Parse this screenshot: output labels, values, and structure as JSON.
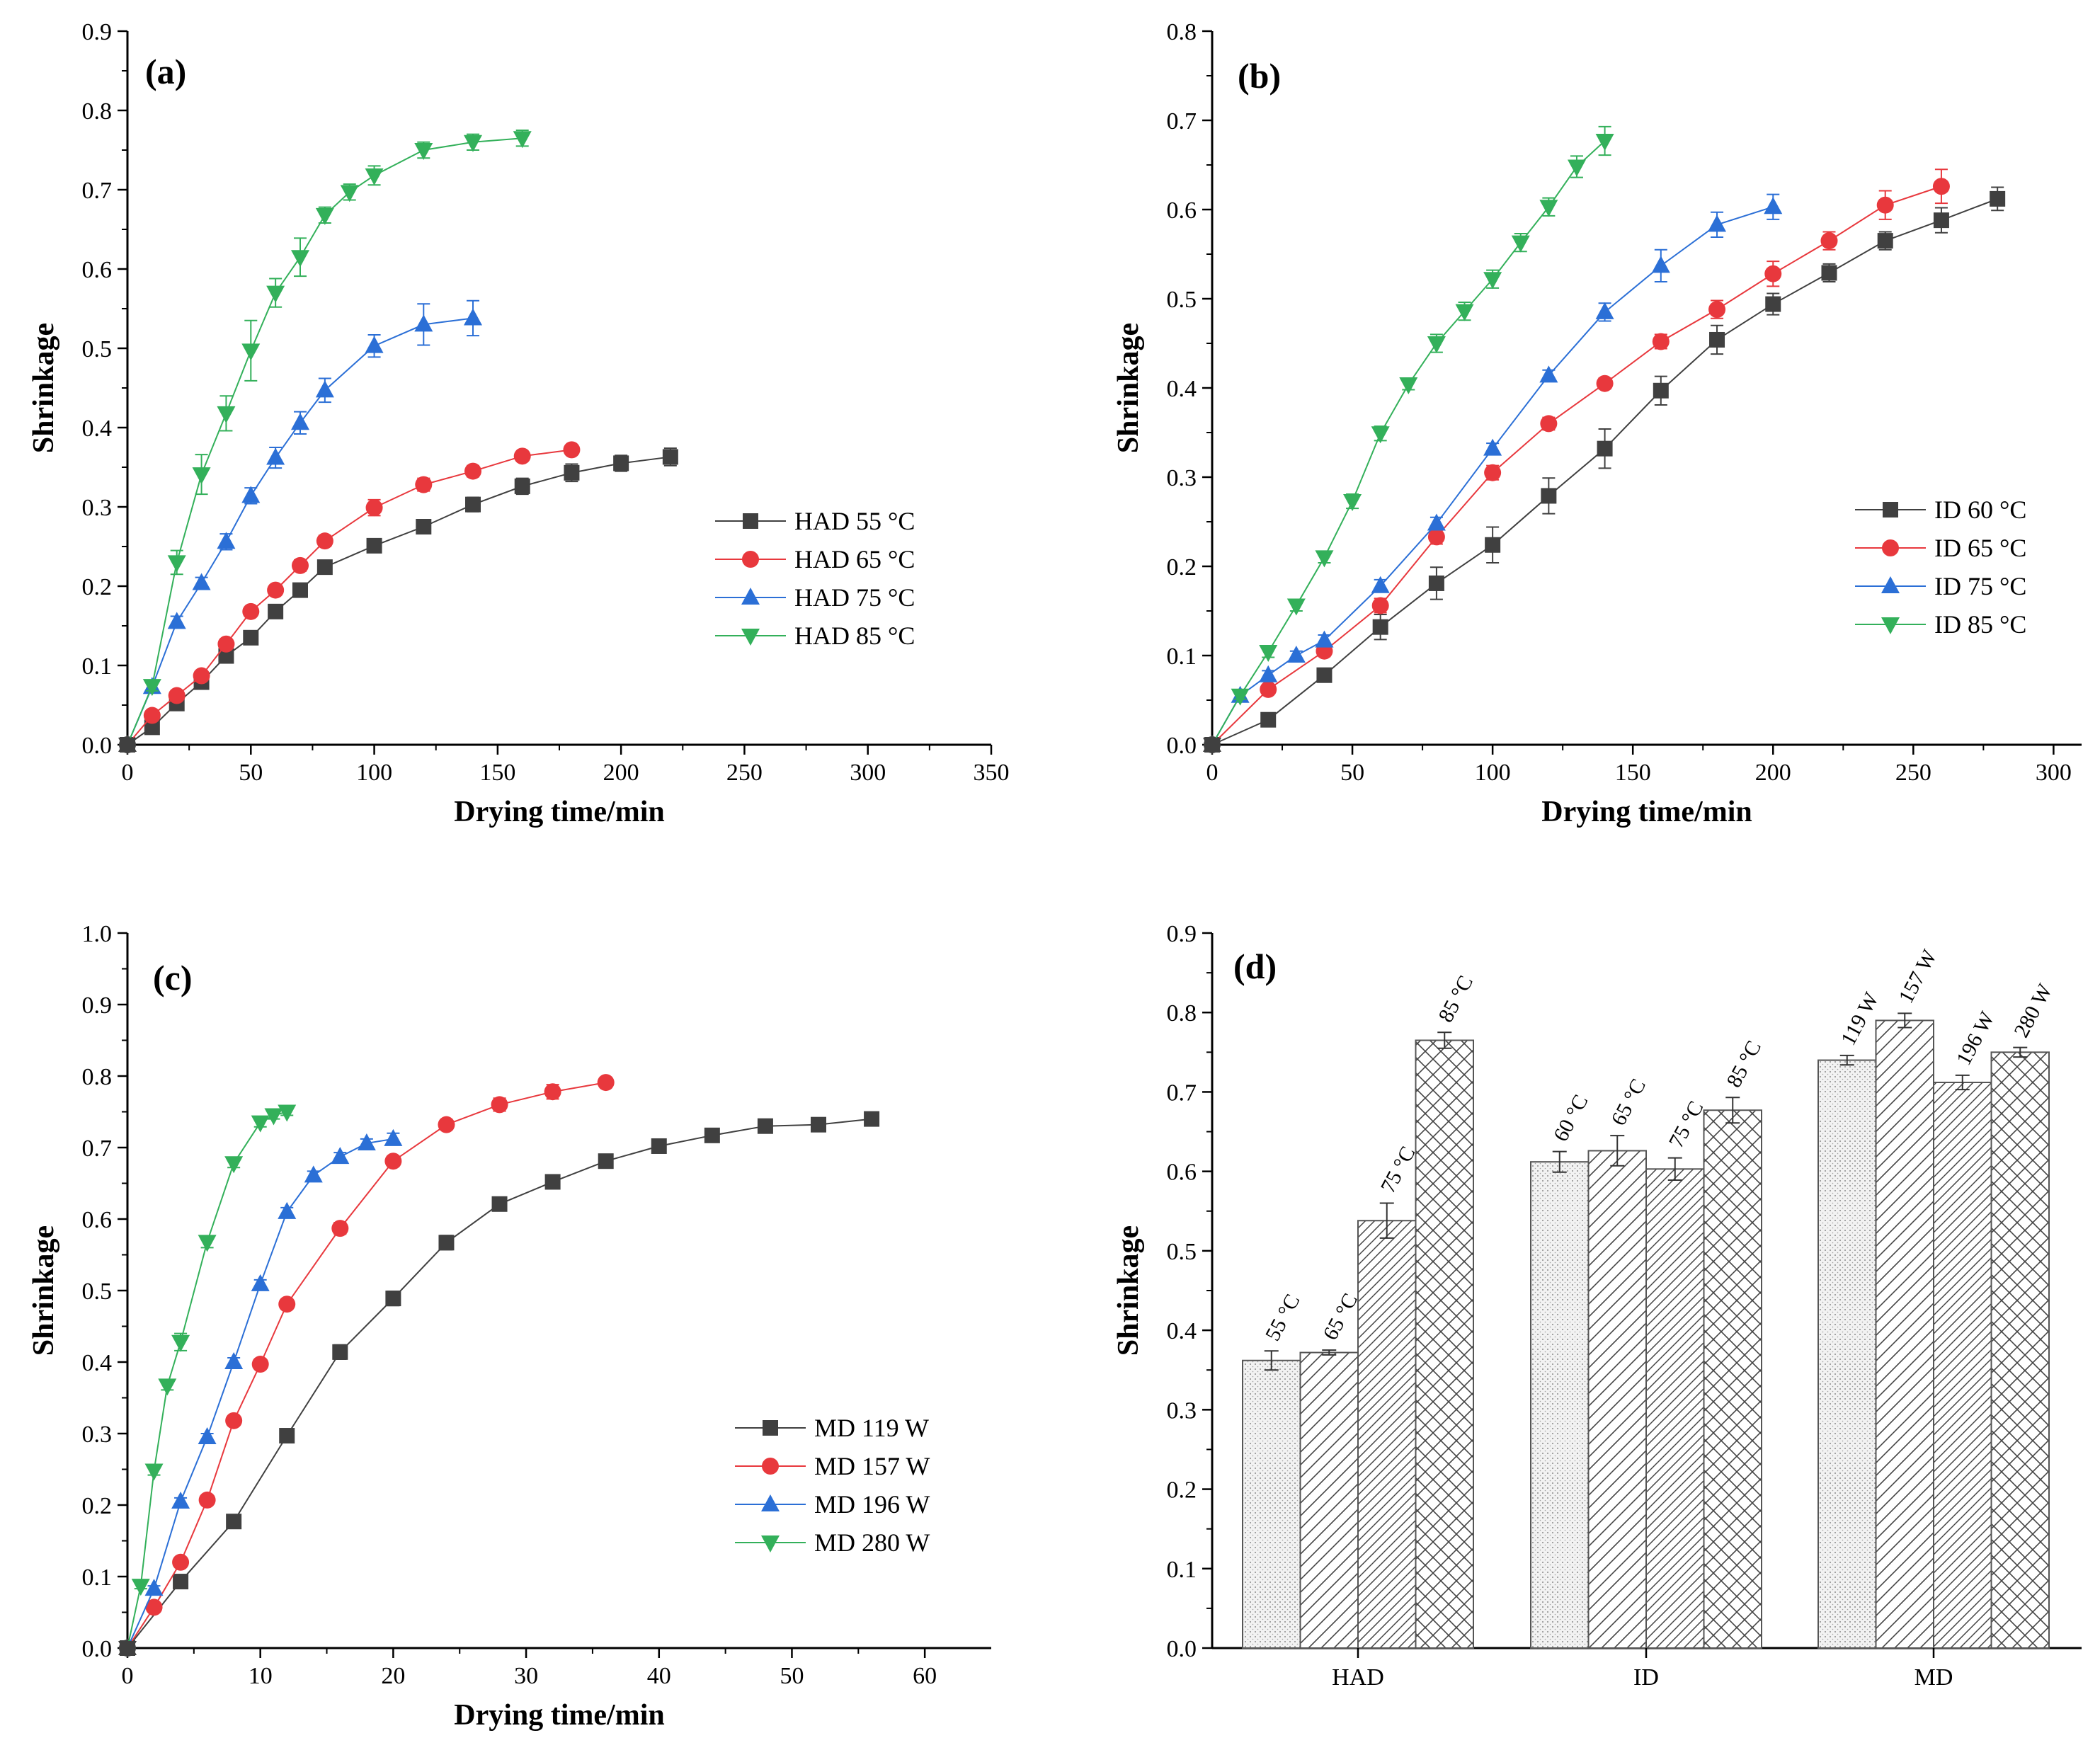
{
  "chart_data": [
    {
      "panel": "(a)",
      "type": "line",
      "xlabel": "Drying time/min",
      "ylabel": "Shrinkage",
      "xlim": [
        0,
        350
      ],
      "ylim": [
        0,
        0.9
      ],
      "xticks": [
        0,
        50,
        100,
        150,
        200,
        250,
        300,
        350
      ],
      "yticks": [
        0.0,
        0.1,
        0.2,
        0.3,
        0.4,
        0.5,
        0.6,
        0.7,
        0.8,
        0.9
      ],
      "ytick_decimals": 1,
      "legend": "center-right",
      "series": [
        {
          "name": "HAD 55 °C",
          "color": "#404040",
          "marker": "square",
          "x": [
            0,
            10,
            20,
            30,
            40,
            50,
            60,
            70,
            80,
            100,
            120,
            140,
            160,
            180,
            200,
            220
          ],
          "y": [
            0,
            0.022,
            0.052,
            0.079,
            0.112,
            0.135,
            0.168,
            0.195,
            0.224,
            0.251,
            0.275,
            0.303,
            0.326,
            0.343,
            0.355,
            0.363
          ],
          "err": [
            0,
            0.004,
            0.005,
            0.005,
            0.006,
            0.006,
            0.007,
            0.007,
            0.007,
            0.007,
            0.008,
            0.009,
            0.01,
            0.011,
            0.01,
            0.011
          ]
        },
        {
          "name": "HAD 65 °C",
          "color": "#e8383d",
          "marker": "circle",
          "x": [
            0,
            10,
            20,
            30,
            40,
            50,
            60,
            70,
            80,
            100,
            120,
            140,
            160,
            180
          ],
          "y": [
            0,
            0.037,
            0.062,
            0.087,
            0.127,
            0.168,
            0.195,
            0.226,
            0.257,
            0.299,
            0.328,
            0.345,
            0.364,
            0.372
          ],
          "err": [
            0,
            0.004,
            0.004,
            0.005,
            0.005,
            0.006,
            0.006,
            0.007,
            0.007,
            0.01,
            0.008,
            0.007,
            0.006,
            0.004
          ]
        },
        {
          "name": "HAD 75 °C",
          "color": "#2b6fd6",
          "marker": "triangle-up",
          "x": [
            0,
            10,
            20,
            30,
            40,
            50,
            60,
            70,
            80,
            100,
            120,
            140
          ],
          "y": [
            0,
            0.073,
            0.155,
            0.204,
            0.256,
            0.314,
            0.362,
            0.406,
            0.447,
            0.503,
            0.53,
            0.538
          ],
          "err": [
            0,
            0.005,
            0.007,
            0.007,
            0.01,
            0.01,
            0.013,
            0.014,
            0.015,
            0.014,
            0.026,
            0.022
          ]
        },
        {
          "name": "HAD 85 °C",
          "color": "#33b05a",
          "marker": "triangle-down",
          "x": [
            0,
            10,
            20,
            30,
            40,
            50,
            60,
            70,
            80,
            90,
            100,
            120,
            140,
            160
          ],
          "y": [
            0,
            0.074,
            0.23,
            0.341,
            0.418,
            0.497,
            0.57,
            0.615,
            0.668,
            0.697,
            0.718,
            0.75,
            0.76,
            0.765
          ],
          "err": [
            0,
            0.006,
            0.015,
            0.025,
            0.022,
            0.038,
            0.018,
            0.024,
            0.01,
            0.01,
            0.012,
            0.01,
            0.01,
            0.01
          ]
        }
      ]
    },
    {
      "panel": "(b)",
      "type": "line",
      "xlabel": "Drying time/min",
      "ylabel": "Shrinkage",
      "xlim": [
        0,
        310
      ],
      "ylim": [
        0,
        0.8
      ],
      "xticks": [
        0,
        50,
        100,
        150,
        200,
        250,
        300
      ],
      "yticks": [
        0.0,
        0.1,
        0.2,
        0.3,
        0.4,
        0.5,
        0.6,
        0.7,
        0.8
      ],
      "ytick_decimals": 1,
      "legend": "center-right",
      "series": [
        {
          "name": "ID 60 °C",
          "color": "#404040",
          "marker": "square",
          "x": [
            0,
            20,
            40,
            60,
            80,
            100,
            120,
            140,
            160,
            180,
            200,
            220,
            240,
            260,
            280
          ],
          "y": [
            0,
            0.028,
            0.078,
            0.132,
            0.181,
            0.224,
            0.279,
            0.332,
            0.397,
            0.454,
            0.494,
            0.529,
            0.565,
            0.588,
            0.612
          ],
          "err": [
            0,
            0.004,
            0.007,
            0.014,
            0.018,
            0.02,
            0.02,
            0.022,
            0.016,
            0.016,
            0.012,
            0.01,
            0.01,
            0.014,
            0.013
          ]
        },
        {
          "name": "ID 65 °C",
          "color": "#e8383d",
          "marker": "circle",
          "x": [
            0,
            20,
            40,
            60,
            80,
            100,
            120,
            140,
            160,
            180,
            200,
            220,
            240,
            260
          ],
          "y": [
            0,
            0.062,
            0.105,
            0.156,
            0.233,
            0.305,
            0.36,
            0.405,
            0.452,
            0.488,
            0.528,
            0.565,
            0.605,
            0.626
          ],
          "err": [
            0,
            0.005,
            0.006,
            0.008,
            0.008,
            0.008,
            0.007,
            0.006,
            0.008,
            0.01,
            0.014,
            0.01,
            0.016,
            0.019
          ]
        },
        {
          "name": "ID 75 °C",
          "color": "#2b6fd6",
          "marker": "triangle-up",
          "x": [
            0,
            10,
            20,
            30,
            40,
            60,
            80,
            100,
            120,
            140,
            160,
            180,
            200
          ],
          "y": [
            0,
            0.055,
            0.078,
            0.1,
            0.117,
            0.178,
            0.248,
            0.332,
            0.414,
            0.485,
            0.537,
            0.583,
            0.603
          ],
          "err": [
            0,
            0.004,
            0.005,
            0.005,
            0.006,
            0.007,
            0.007,
            0.006,
            0.006,
            0.01,
            0.018,
            0.014,
            0.014
          ]
        },
        {
          "name": "ID 85 °C",
          "color": "#33b05a",
          "marker": "triangle-down",
          "x": [
            0,
            10,
            20,
            30,
            40,
            50,
            60,
            70,
            80,
            90,
            100,
            110,
            120,
            130,
            140
          ],
          "y": [
            0,
            0.055,
            0.104,
            0.156,
            0.21,
            0.273,
            0.349,
            0.404,
            0.45,
            0.486,
            0.522,
            0.563,
            0.603,
            0.648,
            0.677
          ],
          "err": [
            0,
            0.004,
            0.006,
            0.006,
            0.006,
            0.008,
            0.008,
            0.006,
            0.01,
            0.01,
            0.01,
            0.01,
            0.01,
            0.012,
            0.016
          ]
        }
      ]
    },
    {
      "panel": "(c)",
      "type": "line",
      "xlabel": "Drying time/min",
      "ylabel": "Shrinkage",
      "xlim": [
        0,
        65
      ],
      "ylim": [
        0,
        1.0
      ],
      "xticks": [
        0,
        10,
        20,
        30,
        40,
        50,
        60
      ],
      "yticks": [
        0.0,
        0.1,
        0.2,
        0.3,
        0.4,
        0.5,
        0.6,
        0.7,
        0.8,
        0.9,
        1.0
      ],
      "ytick_decimals": 1,
      "legend": "bottom-right",
      "series": [
        {
          "name": "MD 119 W",
          "color": "#404040",
          "marker": "square",
          "x": [
            0,
            4,
            8,
            12,
            16,
            20,
            24,
            28,
            32,
            36,
            40,
            44,
            48,
            52,
            56
          ],
          "y": [
            0,
            0.093,
            0.177,
            0.297,
            0.414,
            0.489,
            0.567,
            0.621,
            0.652,
            0.681,
            0.702,
            0.717,
            0.73,
            0.732,
            0.74
          ],
          "err": [
            0,
            0.004,
            0.005,
            0.006,
            0.01,
            0.01,
            0.01,
            0.007,
            0.008,
            0.005,
            0.004,
            0.004,
            0.008,
            0.006,
            0.005
          ]
        },
        {
          "name": "MD 157 W",
          "color": "#e8383d",
          "marker": "circle",
          "x": [
            0,
            2,
            4,
            6,
            8,
            10,
            12,
            16,
            20,
            24,
            28,
            32,
            36
          ],
          "y": [
            0,
            0.057,
            0.12,
            0.207,
            0.318,
            0.397,
            0.481,
            0.587,
            0.681,
            0.732,
            0.76,
            0.778,
            0.791
          ],
          "err": [
            0,
            0.004,
            0.005,
            0.005,
            0.006,
            0.005,
            0.006,
            0.008,
            0.007,
            0.007,
            0.009,
            0.01,
            0.007
          ]
        },
        {
          "name": "MD 196 W",
          "color": "#2b6fd6",
          "marker": "triangle-up",
          "x": [
            0,
            2,
            4,
            6,
            8,
            10,
            12,
            14,
            16,
            18,
            20
          ],
          "y": [
            0,
            0.083,
            0.205,
            0.295,
            0.4,
            0.509,
            0.61,
            0.661,
            0.687,
            0.706,
            0.712
          ],
          "err": [
            0,
            0.004,
            0.005,
            0.005,
            0.006,
            0.006,
            0.006,
            0.006,
            0.006,
            0.006,
            0.008
          ]
        },
        {
          "name": "MD 280 W",
          "color": "#33b05a",
          "marker": "triangle-down",
          "x": [
            0,
            1,
            2,
            3,
            4,
            6,
            8,
            10,
            11,
            12
          ],
          "y": [
            0,
            0.087,
            0.248,
            0.367,
            0.428,
            0.568,
            0.678,
            0.735,
            0.745,
            0.75
          ],
          "err": [
            0,
            0.004,
            0.006,
            0.006,
            0.012,
            0.008,
            0.006,
            0.006,
            0.005,
            0.005
          ]
        }
      ]
    },
    {
      "panel": "(d)",
      "type": "bar",
      "xlabel": "",
      "ylabel": "Shrinkage",
      "ylim": [
        0,
        0.9
      ],
      "yticks": [
        0.0,
        0.1,
        0.2,
        0.3,
        0.4,
        0.5,
        0.6,
        0.7,
        0.8,
        0.9
      ],
      "ytick_decimals": 1,
      "groups": [
        {
          "category": "HAD",
          "labels": [
            "55 °C",
            "65 °C",
            "75 °C",
            "85 °C"
          ],
          "values": [
            0.362,
            0.372,
            0.538,
            0.765
          ],
          "err": [
            0.012,
            0.003,
            0.022,
            0.01
          ]
        },
        {
          "category": "ID",
          "labels": [
            "60 °C",
            "65 °C",
            "75 °C",
            "85 °C"
          ],
          "values": [
            0.612,
            0.626,
            0.603,
            0.677
          ],
          "err": [
            0.013,
            0.019,
            0.014,
            0.016
          ]
        },
        {
          "category": "MD",
          "labels": [
            "119 W",
            "157 W",
            "196 W",
            "280 W"
          ],
          "values": [
            0.74,
            0.79,
            0.712,
            0.75
          ],
          "err": [
            0.006,
            0.009,
            0.009,
            0.006
          ]
        }
      ]
    }
  ]
}
